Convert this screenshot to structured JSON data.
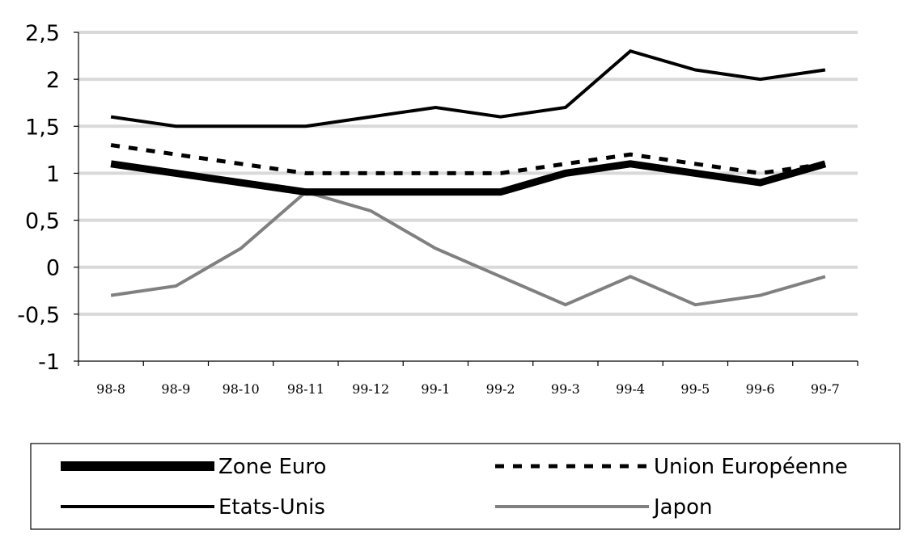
{
  "chart_data": {
    "type": "line",
    "title": "",
    "xlabel": "",
    "ylabel": "",
    "categories": [
      "98-8",
      "98-9",
      "98-10",
      "98-11",
      "99-12",
      "99-1",
      "99-2",
      "99-3",
      "99-4",
      "99-5",
      "99-6",
      "99-7"
    ],
    "ylim": [
      -1,
      2.5
    ],
    "yticks": [
      2.5,
      2,
      1.5,
      1,
      0.5,
      0,
      -0.5,
      -1
    ],
    "ytick_labels": [
      "2,5",
      "2",
      "1,5",
      "1",
      "0,5",
      "0",
      "-0,5",
      "-1"
    ],
    "grid": true,
    "legend_position": "bottom",
    "series": [
      {
        "name": "Zone Euro",
        "values": [
          1.1,
          1.0,
          0.9,
          0.8,
          0.8,
          0.8,
          0.8,
          1.0,
          1.1,
          1.0,
          0.9,
          1.1
        ],
        "color": "#000000",
        "style": "thick"
      },
      {
        "name": "Union Européenne",
        "values": [
          1.3,
          1.2,
          1.1,
          1.0,
          1.0,
          1.0,
          1.0,
          1.1,
          1.2,
          1.1,
          1.0,
          1.1
        ],
        "color": "#000000",
        "style": "dashed"
      },
      {
        "name": "Etats-Unis",
        "values": [
          1.6,
          1.5,
          1.5,
          1.5,
          1.6,
          1.7,
          1.6,
          1.7,
          2.3,
          2.1,
          2.0,
          2.1
        ],
        "color": "#000000",
        "style": "solid"
      },
      {
        "name": "Japon",
        "values": [
          -0.3,
          -0.2,
          0.2,
          0.8,
          0.6,
          0.2,
          -0.1,
          -0.4,
          -0.1,
          -0.4,
          -0.3,
          -0.1
        ],
        "color": "#808080",
        "style": "solid"
      }
    ]
  }
}
